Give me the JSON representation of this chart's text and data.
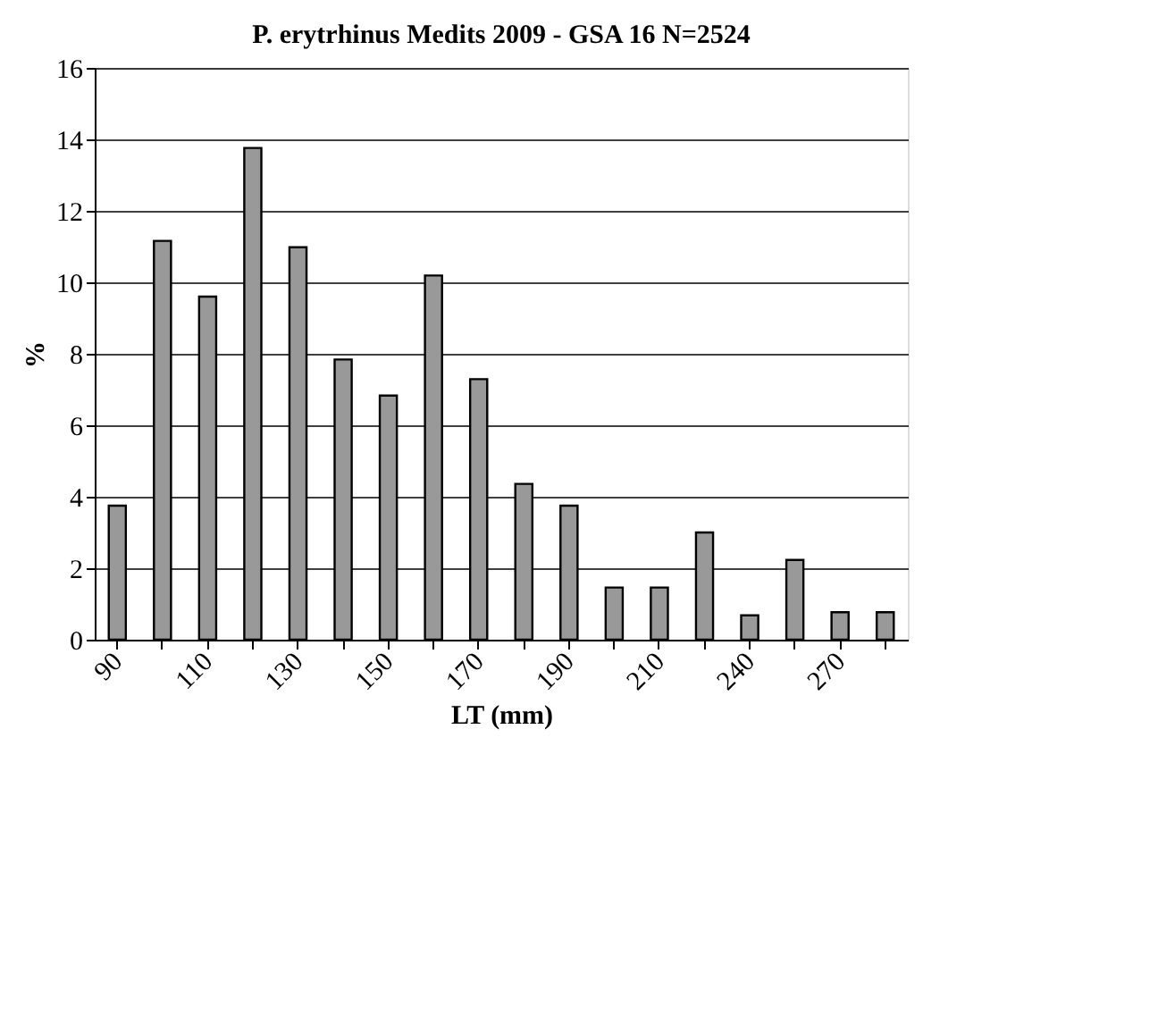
{
  "chart_data": {
    "type": "bar",
    "title": "P. erytrhinus Medits 2009 - GSA 16 N=2524",
    "xlabel": "LT (mm)",
    "ylabel": "%",
    "categories": [
      "90",
      null,
      "110",
      null,
      "130",
      null,
      "150",
      null,
      "170",
      null,
      "190",
      null,
      "210",
      null,
      "240",
      null,
      "270",
      null
    ],
    "values": [
      3.75,
      11.16,
      9.6,
      13.76,
      10.98,
      7.84,
      6.83,
      10.19,
      7.29,
      4.36,
      3.75,
      1.46,
      1.46,
      3.0,
      0.68,
      2.23,
      0.77,
      0.77
    ],
    "color": "#999999",
    "ylim": [
      0,
      16
    ],
    "yticks": [
      0,
      2,
      4,
      6,
      8,
      10,
      12,
      14,
      16
    ],
    "grid": "y"
  }
}
